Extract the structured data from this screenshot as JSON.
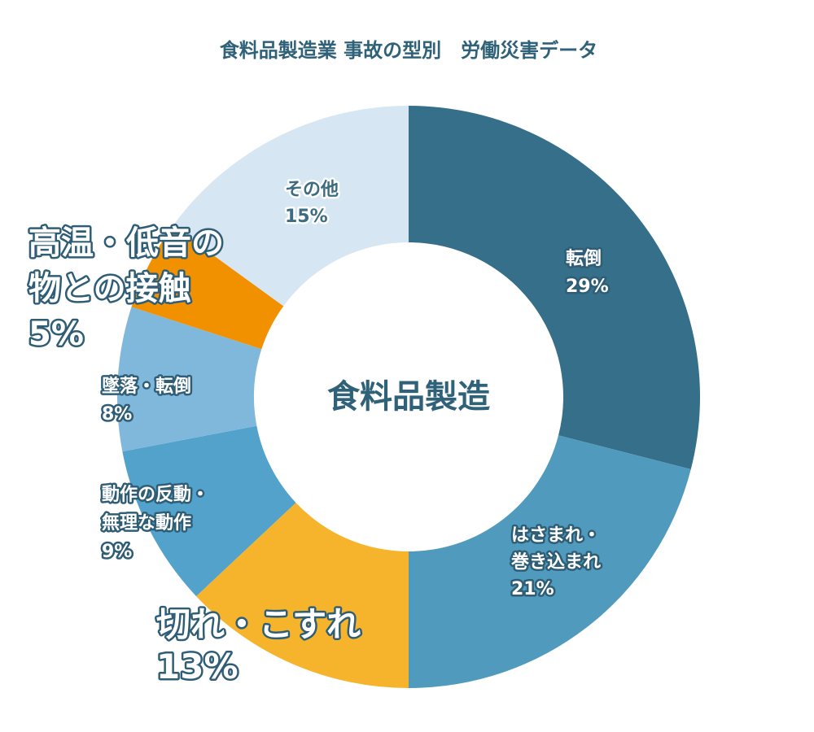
{
  "chart_data": {
    "type": "donut",
    "title": "食料品製造業 事故の型別　労働災害データ",
    "center_label": "食料品製造",
    "categories": [
      [
        "転倒"
      ],
      [
        "はさまれ・",
        "巻き込まれ"
      ],
      [
        "切れ・こすれ"
      ],
      [
        "動作の反動・",
        "無理な動作"
      ],
      [
        "墜落・転倒"
      ],
      [
        "高温・低音の",
        "物との接触"
      ],
      [
        "その他"
      ]
    ],
    "values": [
      29,
      21,
      13,
      9,
      8,
      5,
      15
    ],
    "value_labels": [
      "29%",
      "21%",
      "13%",
      "9%",
      "8%",
      "5%",
      "15%"
    ],
    "colors": [
      "#366f8a",
      "#4f9abd",
      "#f5b42c",
      "#52a2cc",
      "#80b8dc",
      "#f29100",
      "#d6e6f2"
    ]
  }
}
